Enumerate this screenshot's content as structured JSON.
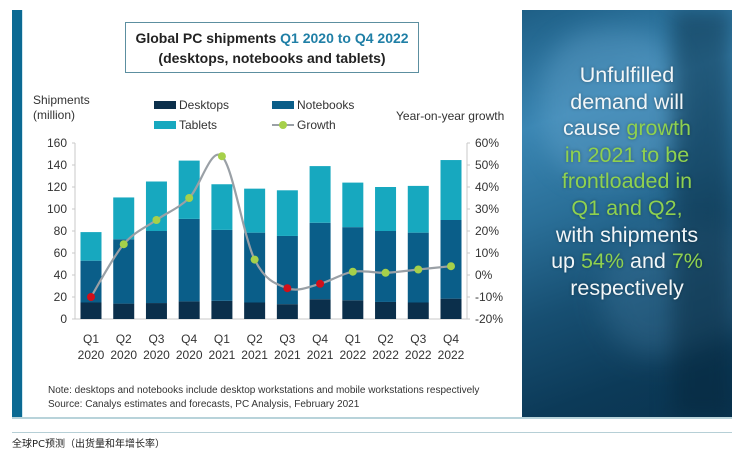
{
  "title": {
    "part1": "Global PC shipments ",
    "part2_highlight": "Q1 2020 to Q4 2022",
    "line2": "(desktops, notebooks and tablets)"
  },
  "axes": {
    "left_label_line1": "Shipments",
    "left_label_line2": "(million)",
    "right_label": "Year-on-year growth"
  },
  "legend": {
    "desktops": "Desktops",
    "notebooks": "Notebooks",
    "tablets": "Tablets",
    "growth": "Growth"
  },
  "notes": {
    "note": "Note: desktops and notebooks include desktop workstations and mobile workstations respectively",
    "source": "Source: Canalys estimates and forecasts, PC Analysis, February 2021"
  },
  "callout": {
    "l1": "Unfulfilled",
    "l2": "demand will",
    "l3a": "cause ",
    "l3b": "growth",
    "l4": "in 2021 to be",
    "l5": "frontloaded in",
    "l6": "Q1 and Q2,",
    "l7": "with shipments",
    "l8a": "up ",
    "l8b": "54%",
    "l8c": " and ",
    "l8d": "7%",
    "l9": "respectively"
  },
  "caption": "全球PC预测（出货量和年增长率）",
  "colors": {
    "desktops": "#0b2f4b",
    "notebooks": "#0a5e89",
    "tablets": "#17a8bf",
    "growth_line": "#9aa0a6",
    "growth_positive": "#a6d04a",
    "growth_negative": "#d0101a",
    "accent": "#1f7fa6"
  },
  "chart_data": {
    "type": "bar",
    "stacked": true,
    "title": "Global PC shipments Q1 2020 to Q4 2022 (desktops, notebooks and tablets)",
    "xlabel": "",
    "ylabel": "Shipments (million)",
    "y2label": "Year-on-year growth",
    "ylim": [
      0,
      160
    ],
    "yticks": [
      0,
      20,
      40,
      60,
      80,
      100,
      120,
      140,
      160
    ],
    "y2lim": [
      -20,
      60
    ],
    "y2ticks": [
      "-20%",
      "-10%",
      "0%",
      "10%",
      "20%",
      "30%",
      "40%",
      "50%",
      "60%"
    ],
    "y2tick_values": [
      -20,
      -10,
      0,
      10,
      20,
      30,
      40,
      50,
      60
    ],
    "legend_position": "top",
    "grid": false,
    "categories": [
      [
        "Q1",
        "2020"
      ],
      [
        "Q2",
        "2020"
      ],
      [
        "Q3",
        "2020"
      ],
      [
        "Q4",
        "2020"
      ],
      [
        "Q1",
        "2021"
      ],
      [
        "Q2",
        "2021"
      ],
      [
        "Q3",
        "2021"
      ],
      [
        "Q4",
        "2021"
      ],
      [
        "Q1",
        "2022"
      ],
      [
        "Q2",
        "2022"
      ],
      [
        "Q3",
        "2022"
      ],
      [
        "Q4",
        "2022"
      ]
    ],
    "series": [
      {
        "name": "Desktops",
        "values": [
          15,
          14,
          14.5,
          16,
          16.5,
          15,
          13.5,
          18,
          17,
          15.5,
          15,
          18.5
        ]
      },
      {
        "name": "Notebooks",
        "values": [
          38,
          58.5,
          65.5,
          75,
          64.5,
          63.5,
          62,
          69.5,
          66.5,
          64.5,
          63.5,
          71.5
        ]
      },
      {
        "name": "Tablets",
        "values": [
          26,
          38,
          45,
          53,
          41.5,
          40,
          41.5,
          51.5,
          40.5,
          40,
          42.5,
          54.5
        ]
      }
    ],
    "growth": {
      "name": "Growth",
      "axis": "right",
      "unit": "%",
      "values": [
        -10,
        14,
        25,
        35,
        54,
        7,
        -6,
        -4,
        1.5,
        1,
        2.5,
        4
      ]
    }
  }
}
